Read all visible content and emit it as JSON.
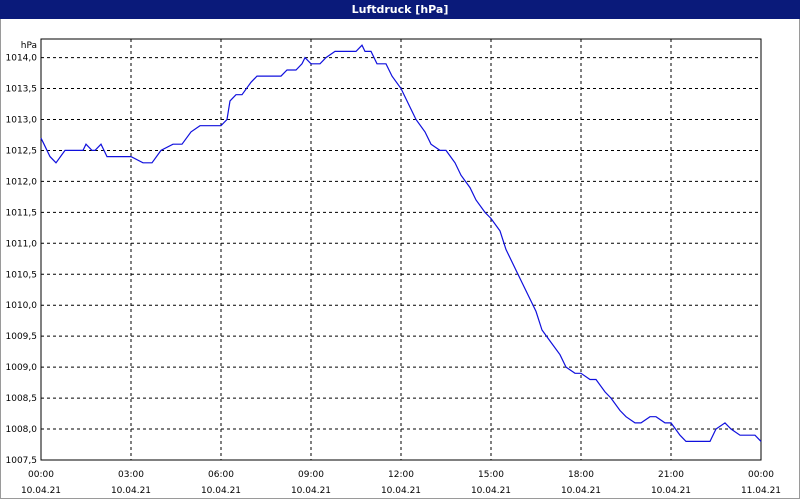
{
  "chart_data": {
    "type": "line",
    "title": "Luftdruck [hPa]",
    "ylabel": "hPa",
    "ylim": [
      1007.5,
      1014.3
    ],
    "yticks": [
      {
        "v": 1014.0,
        "label": "1014,0"
      },
      {
        "v": 1013.5,
        "label": "1013,5"
      },
      {
        "v": 1013.0,
        "label": "1013,0"
      },
      {
        "v": 1012.5,
        "label": "1012,5"
      },
      {
        "v": 1012.0,
        "label": "1012,0"
      },
      {
        "v": 1011.5,
        "label": "1011,5"
      },
      {
        "v": 1011.0,
        "label": "1011,0"
      },
      {
        "v": 1010.5,
        "label": "1010,5"
      },
      {
        "v": 1010.0,
        "label": "1010,0"
      },
      {
        "v": 1009.5,
        "label": "1009,5"
      },
      {
        "v": 1009.0,
        "label": "1009,0"
      },
      {
        "v": 1008.5,
        "label": "1008,5"
      },
      {
        "v": 1008.0,
        "label": "1008,0"
      },
      {
        "v": 1007.5,
        "label": "1007,5"
      }
    ],
    "xlim": [
      0,
      24
    ],
    "xticks": [
      {
        "h": 0,
        "time": "00:00",
        "date": "10.04.21"
      },
      {
        "h": 3,
        "time": "03:00",
        "date": "10.04.21"
      },
      {
        "h": 6,
        "time": "06:00",
        "date": "10.04.21"
      },
      {
        "h": 9,
        "time": "09:00",
        "date": "10.04.21"
      },
      {
        "h": 12,
        "time": "12:00",
        "date": "10.04.21"
      },
      {
        "h": 15,
        "time": "15:00",
        "date": "10.04.21"
      },
      {
        "h": 18,
        "time": "18:00",
        "date": "10.04.21"
      },
      {
        "h": 21,
        "time": "21:00",
        "date": "10.04.21"
      },
      {
        "h": 24,
        "time": "00:00",
        "date": "11.04.21"
      }
    ],
    "grid": true,
    "color": "#1010dd",
    "series": [
      {
        "x": [
          0,
          0.1,
          0.3,
          0.5,
          0.8,
          1.0,
          1.4,
          1.5,
          1.7,
          1.8,
          2.0,
          2.1,
          2.2,
          3.0,
          3.4,
          3.7,
          4.0,
          4.4,
          4.7,
          5.0,
          5.3,
          6.0,
          6.2,
          6.3,
          6.5,
          6.7,
          7.0,
          7.2,
          7.4,
          8.0,
          8.2,
          8.5,
          8.7,
          8.8,
          9.0,
          9.3,
          9.5,
          9.8,
          10.0,
          10.5,
          10.7,
          10.8,
          11.0,
          11.2,
          11.5,
          11.7,
          12.0,
          12.3,
          12.5,
          12.8,
          13.0,
          13.3,
          13.5,
          13.8,
          14.0,
          14.3,
          14.5,
          14.8,
          15.0,
          15.3,
          15.5,
          15.8,
          16.0,
          16.3,
          16.5,
          16.7,
          17.0,
          17.3,
          17.5,
          17.8,
          18.0,
          18.3,
          18.5,
          18.8,
          19.0,
          19.3,
          19.5,
          19.8,
          20.0,
          20.3,
          20.5,
          20.8,
          21.0,
          21.3,
          21.5,
          21.8,
          22.0,
          22.3,
          22.5,
          22.8,
          23.0,
          23.3,
          23.5,
          23.8,
          24.0
        ],
        "y": [
          1012.7,
          1012.6,
          1012.4,
          1012.3,
          1012.5,
          1012.5,
          1012.5,
          1012.6,
          1012.5,
          1012.5,
          1012.6,
          1012.5,
          1012.4,
          1012.4,
          1012.3,
          1012.3,
          1012.5,
          1012.6,
          1012.6,
          1012.8,
          1012.9,
          1012.9,
          1013.0,
          1013.3,
          1013.4,
          1013.4,
          1013.6,
          1013.7,
          1013.7,
          1013.7,
          1013.8,
          1013.8,
          1013.9,
          1014.0,
          1013.9,
          1013.9,
          1014.0,
          1014.1,
          1014.1,
          1014.1,
          1014.2,
          1014.1,
          1014.1,
          1013.9,
          1013.9,
          1013.7,
          1013.5,
          1013.2,
          1013.0,
          1012.8,
          1012.6,
          1012.5,
          1012.5,
          1012.3,
          1012.1,
          1011.9,
          1011.7,
          1011.5,
          1011.4,
          1011.2,
          1010.9,
          1010.6,
          1010.4,
          1010.1,
          1009.9,
          1009.6,
          1009.4,
          1009.2,
          1009.0,
          1008.9,
          1008.9,
          1008.8,
          1008.8,
          1008.6,
          1008.5,
          1008.3,
          1008.2,
          1008.1,
          1008.1,
          1008.2,
          1008.2,
          1008.1,
          1008.1,
          1007.9,
          1007.8,
          1007.8,
          1007.8,
          1007.8,
          1008.0,
          1008.1,
          1008.0,
          1007.9,
          1007.9,
          1007.9,
          1007.8
        ]
      }
    ]
  }
}
